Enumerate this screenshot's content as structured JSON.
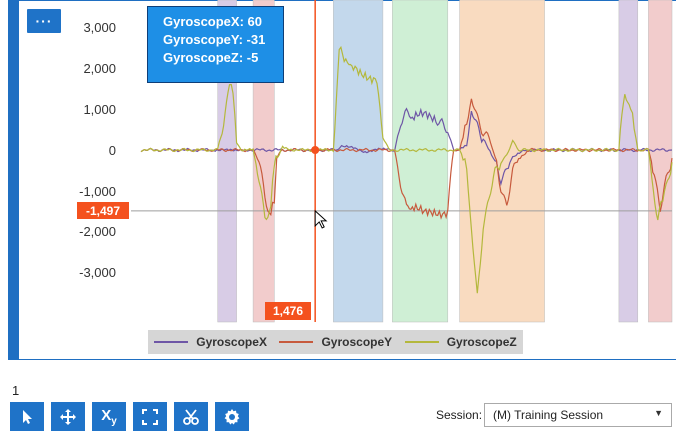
{
  "menu_button": {
    "label": "···"
  },
  "tooltip": {
    "lines": [
      "GyroscopeX: 60",
      "GyroscopeY: -31",
      "GyroscopeZ: -5"
    ]
  },
  "crosshair": {
    "y_value_label": "-1,497",
    "x_value_label": "1,476"
  },
  "page_number": "1",
  "session": {
    "label": "Session:",
    "selected": "(M) Training Session"
  },
  "toolbar": {
    "buttons": [
      "select-icon",
      "pan-icon",
      "xy-icon",
      "expand-icon",
      "cut-icon",
      "settings-icon"
    ],
    "xy_label": "X",
    "xy_sub": "y"
  },
  "colors": {
    "panel_border": "#1f6fc2",
    "button_bg": "#1f73c8",
    "tooltip_bg": "#1e8fe6",
    "crosshair": "#f4511e",
    "gyroX": "#6e56a6",
    "gyroY": "#c75a3d",
    "gyroZ": "#b4b83c",
    "band_purple": "#d8cce6",
    "band_red": "#f2cccc",
    "band_blue": "#c3d8ec",
    "band_green": "#cfefd5",
    "band_orange": "#f9dbc0"
  },
  "chart_data": {
    "type": "line",
    "ylim": [
      -3500,
      3500
    ],
    "y_ticks": [
      "3,000",
      "2,000",
      "1,000",
      "0",
      "-1,000",
      "-2,000",
      "-3,000"
    ],
    "y_tick_values": [
      3000,
      2000,
      1000,
      0,
      -1000,
      -2000,
      -3000
    ],
    "xlim": [
      0,
      4500
    ],
    "grid": false,
    "legend_position": "bottom",
    "crosshair": {
      "x": 1476,
      "y": -1497
    },
    "bands": [
      {
        "x0": 650,
        "x1": 810,
        "color": "band_purple"
      },
      {
        "x0": 950,
        "x1": 1130,
        "color": "band_red"
      },
      {
        "x0": 1630,
        "x1": 2050,
        "color": "band_blue"
      },
      {
        "x0": 2130,
        "x1": 2600,
        "color": "band_green"
      },
      {
        "x0": 2700,
        "x1": 3420,
        "color": "band_orange"
      },
      {
        "x0": 4050,
        "x1": 4210,
        "color": "band_purple"
      },
      {
        "x0": 4300,
        "x1": 4500,
        "color": "band_red"
      }
    ],
    "series": [
      {
        "name": "GyroscopeX",
        "color": "gyroX",
        "points": [
          [
            0,
            0
          ],
          [
            600,
            0
          ],
          [
            700,
            20
          ],
          [
            800,
            -30
          ],
          [
            900,
            0
          ],
          [
            1650,
            0
          ],
          [
            1700,
            80
          ],
          [
            1800,
            50
          ],
          [
            1900,
            -40
          ],
          [
            2000,
            20
          ],
          [
            2100,
            0
          ],
          [
            2150,
            0
          ],
          [
            2200,
            700
          ],
          [
            2250,
            850
          ],
          [
            2300,
            800
          ],
          [
            2400,
            820
          ],
          [
            2500,
            780
          ],
          [
            2550,
            750
          ],
          [
            2600,
            400
          ],
          [
            2650,
            0
          ],
          [
            2700,
            0
          ],
          [
            2760,
            100
          ],
          [
            2800,
            900
          ],
          [
            2850,
            600
          ],
          [
            2900,
            300
          ],
          [
            3000,
            -300
          ],
          [
            3050,
            -700
          ],
          [
            3100,
            -400
          ],
          [
            3150,
            -200
          ],
          [
            3250,
            0
          ],
          [
            3400,
            0
          ],
          [
            4500,
            0
          ]
        ]
      },
      {
        "name": "GyroscopeY",
        "color": "gyroY",
        "points": [
          [
            0,
            0
          ],
          [
            950,
            0
          ],
          [
            1000,
            -300
          ],
          [
            1050,
            -1100
          ],
          [
            1100,
            -1600
          ],
          [
            1130,
            -1300
          ],
          [
            1150,
            -200
          ],
          [
            1200,
            0
          ],
          [
            2150,
            0
          ],
          [
            2200,
            -800
          ],
          [
            2250,
            -1500
          ],
          [
            2300,
            -1400
          ],
          [
            2400,
            -1600
          ],
          [
            2500,
            -1500
          ],
          [
            2600,
            -1500
          ],
          [
            2650,
            0
          ],
          [
            2700,
            0
          ],
          [
            2760,
            600
          ],
          [
            2800,
            1200
          ],
          [
            2850,
            800
          ],
          [
            2900,
            500
          ],
          [
            2950,
            300
          ],
          [
            3000,
            -200
          ],
          [
            3050,
            -900
          ],
          [
            3100,
            -1300
          ],
          [
            3150,
            -600
          ],
          [
            3200,
            -200
          ],
          [
            3300,
            0
          ],
          [
            4300,
            0
          ],
          [
            4350,
            -500
          ],
          [
            4400,
            -1500
          ],
          [
            4450,
            -800
          ],
          [
            4500,
            -200
          ]
        ]
      },
      {
        "name": "GyroscopeZ",
        "color": "gyroZ",
        "points": [
          [
            0,
            0
          ],
          [
            650,
            0
          ],
          [
            700,
            700
          ],
          [
            750,
            1700
          ],
          [
            780,
            1500
          ],
          [
            810,
            200
          ],
          [
            850,
            0
          ],
          [
            950,
            0
          ],
          [
            1000,
            -800
          ],
          [
            1050,
            -1600
          ],
          [
            1100,
            -1400
          ],
          [
            1130,
            -400
          ],
          [
            1200,
            80
          ],
          [
            1300,
            0
          ],
          [
            1630,
            0
          ],
          [
            1680,
            2500
          ],
          [
            1750,
            2200
          ],
          [
            1800,
            2000
          ],
          [
            1900,
            1900
          ],
          [
            2000,
            1700
          ],
          [
            2050,
            300
          ],
          [
            2100,
            0
          ],
          [
            2700,
            0
          ],
          [
            2760,
            -500
          ],
          [
            2800,
            -2000
          ],
          [
            2850,
            -3600
          ],
          [
            2900,
            -1800
          ],
          [
            2950,
            -1200
          ],
          [
            3000,
            -600
          ],
          [
            3050,
            -300
          ],
          [
            3100,
            -100
          ],
          [
            3150,
            200
          ],
          [
            3200,
            0
          ],
          [
            4050,
            0
          ],
          [
            4100,
            1400
          ],
          [
            4150,
            1000
          ],
          [
            4210,
            0
          ],
          [
            4300,
            0
          ],
          [
            4330,
            -800
          ],
          [
            4380,
            -1600
          ],
          [
            4450,
            -1000
          ],
          [
            4500,
            -300
          ]
        ]
      }
    ]
  }
}
